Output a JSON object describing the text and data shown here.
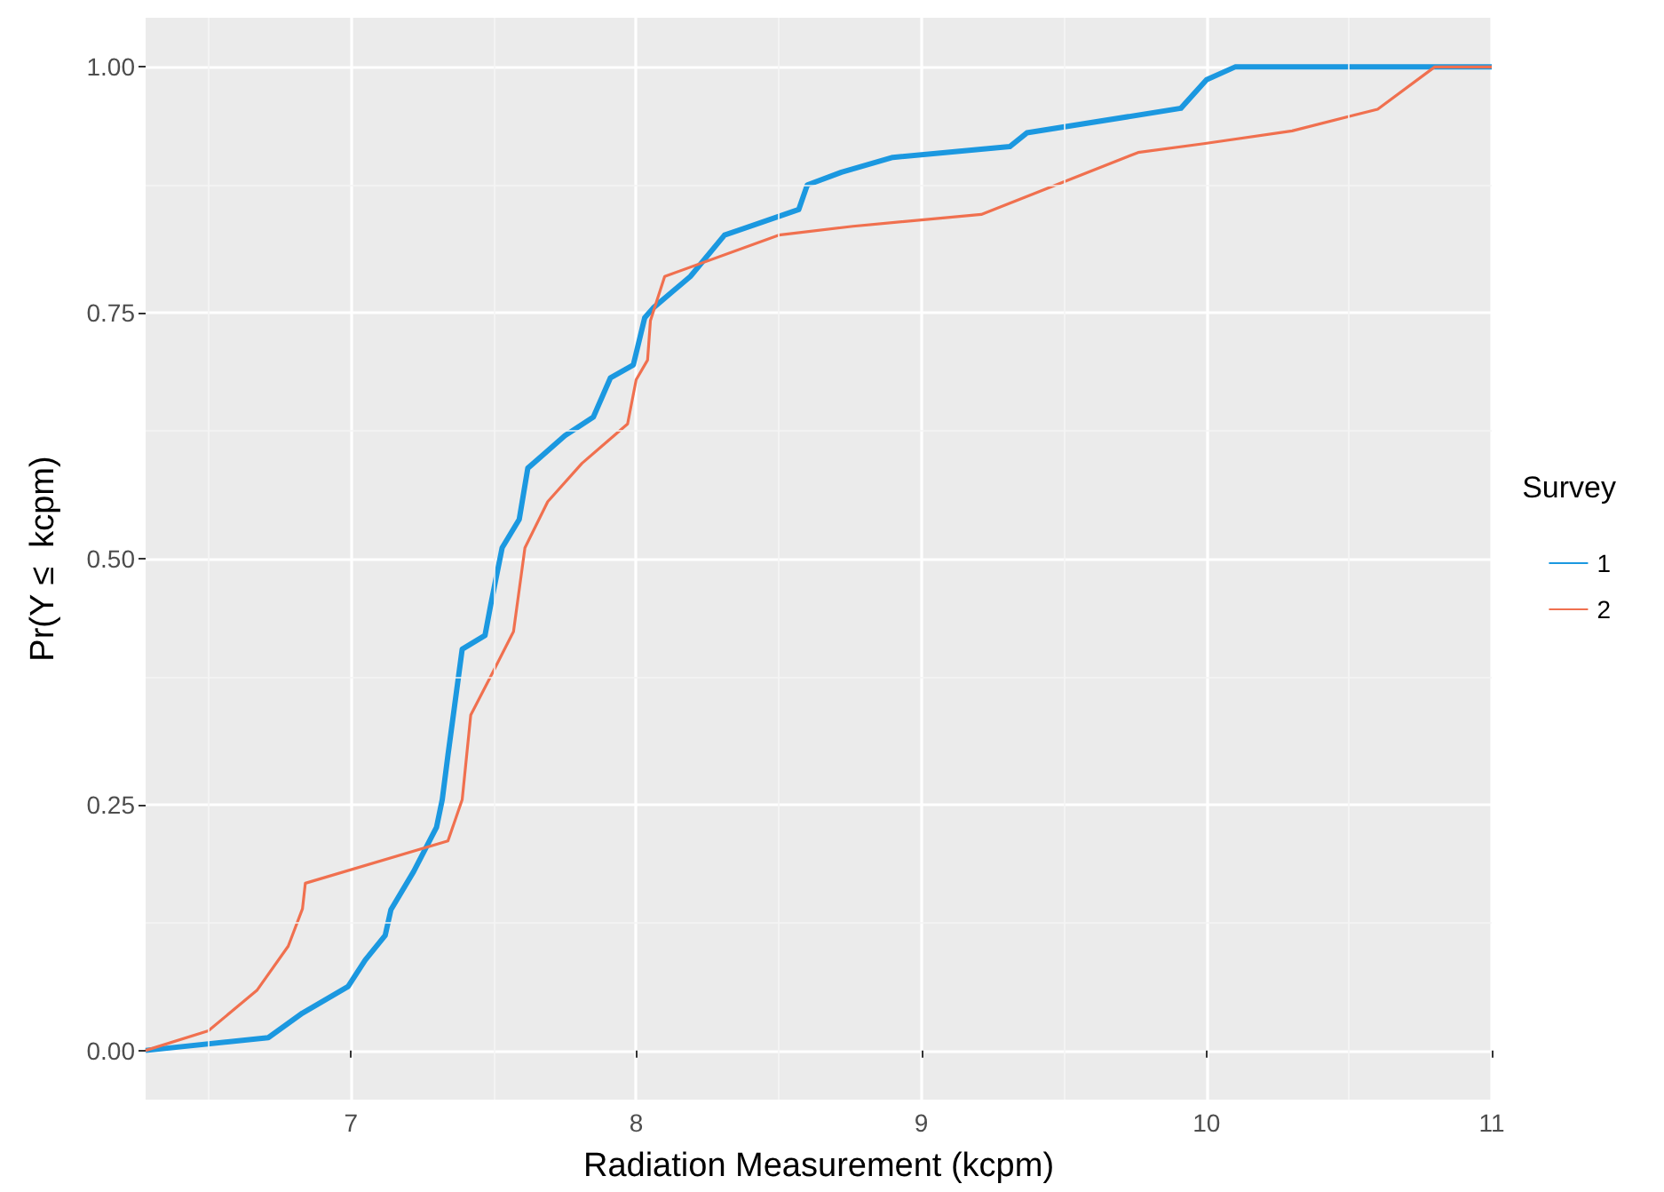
{
  "chart_data": {
    "type": "line",
    "xlabel": "Radiation Measurement (kcpm)",
    "ylabel": "Pr(Y ≤  kcpm)",
    "legend_title": "Survey",
    "xlim": [
      6.28,
      11
    ],
    "xticks": [
      7,
      8,
      9,
      10,
      11
    ],
    "ylim": [
      -0.05,
      1.05
    ],
    "yticks": [
      {
        "value": 0,
        "label": "0.00"
      },
      {
        "value": 0.25,
        "label": "0.25"
      },
      {
        "value": 0.5,
        "label": "0.50"
      },
      {
        "value": 0.75,
        "label": "0.75"
      },
      {
        "value": 1,
        "label": "1.00"
      }
    ],
    "grid": true,
    "legend": "right",
    "marker": "none",
    "line_style": "solid",
    "series": [
      {
        "name": "1",
        "color": "#1b98e0",
        "x": [
          6.28,
          6.71,
          6.83,
          6.99,
          7.05,
          7.12,
          7.14,
          7.22,
          7.3,
          7.32,
          7.34,
          7.39,
          7.47,
          7.49,
          7.53,
          7.59,
          7.62,
          7.75,
          7.85,
          7.91,
          7.99,
          8.03,
          8.06,
          8.19,
          8.31,
          8.57,
          8.6,
          8.72,
          8.9,
          9.31,
          9.37,
          9.91,
          10.0,
          10.1,
          11.0
        ],
        "values": [
          0,
          0.013,
          0.038,
          0.065,
          0.092,
          0.117,
          0.143,
          0.182,
          0.227,
          0.255,
          0.3,
          0.408,
          0.422,
          0.453,
          0.511,
          0.54,
          0.592,
          0.625,
          0.644,
          0.684,
          0.697,
          0.745,
          0.755,
          0.787,
          0.829,
          0.855,
          0.88,
          0.893,
          0.908,
          0.919,
          0.933,
          0.958,
          0.987,
          1.0,
          1.0
        ]
      },
      {
        "name": "2",
        "color": "#f0704f",
        "x": [
          6.28,
          6.5,
          6.67,
          6.78,
          6.83,
          6.84,
          7.34,
          7.39,
          7.42,
          7.5,
          7.57,
          7.61,
          7.69,
          7.81,
          7.97,
          8.0,
          8.04,
          8.05,
          8.1,
          8.5,
          8.76,
          9.21,
          9.76,
          9.99,
          10.3,
          10.6,
          10.8,
          11.0
        ],
        "values": [
          0,
          0.02,
          0.061,
          0.106,
          0.144,
          0.17,
          0.213,
          0.255,
          0.341,
          0.386,
          0.426,
          0.511,
          0.558,
          0.597,
          0.637,
          0.682,
          0.702,
          0.742,
          0.787,
          0.829,
          0.838,
          0.85,
          0.913,
          0.922,
          0.935,
          0.957,
          1.0,
          1.0
        ]
      }
    ]
  }
}
